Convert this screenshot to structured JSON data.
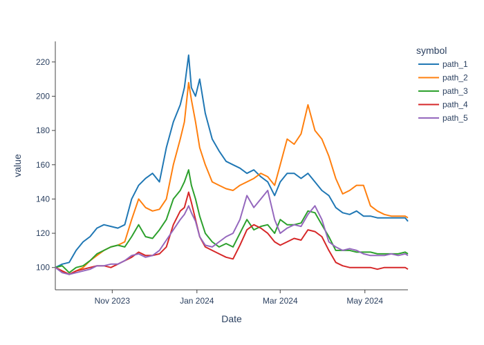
{
  "chart_data": {
    "type": "line",
    "xlabel": "Date",
    "ylabel": "value",
    "legend_title": "symbol",
    "legend_position": "top-right",
    "xlim": [
      "2023-09-21",
      "2024-06-01"
    ],
    "ylim": [
      87,
      232
    ],
    "x_ticks": [
      {
        "date": "2023-11-01",
        "label": "Nov 2023"
      },
      {
        "date": "2024-01-01",
        "label": "Jan 2024"
      },
      {
        "date": "2024-03-01",
        "label": "Mar 2024"
      },
      {
        "date": "2024-05-01",
        "label": "May 2024"
      }
    ],
    "y_ticks": [
      100,
      120,
      140,
      160,
      180,
      200,
      220
    ],
    "grid": false,
    "series": [
      {
        "name": "path_1",
        "color": "#1f77b4",
        "points": [
          [
            "2023-09-21",
            100
          ],
          [
            "2023-09-26",
            102
          ],
          [
            "2023-10-01",
            103
          ],
          [
            "2023-10-06",
            110
          ],
          [
            "2023-10-11",
            115
          ],
          [
            "2023-10-16",
            118
          ],
          [
            "2023-10-21",
            123
          ],
          [
            "2023-10-26",
            125
          ],
          [
            "2023-10-31",
            124
          ],
          [
            "2023-11-05",
            123
          ],
          [
            "2023-11-10",
            125
          ],
          [
            "2023-11-15",
            140
          ],
          [
            "2023-11-20",
            148
          ],
          [
            "2023-11-25",
            152
          ],
          [
            "2023-11-30",
            155
          ],
          [
            "2023-12-05",
            150
          ],
          [
            "2023-12-10",
            170
          ],
          [
            "2023-12-15",
            185
          ],
          [
            "2023-12-20",
            195
          ],
          [
            "2023-12-23",
            205
          ],
          [
            "2023-12-26",
            224
          ],
          [
            "2023-12-28",
            205
          ],
          [
            "2023-12-31",
            200
          ],
          [
            "2024-01-03",
            210
          ],
          [
            "2024-01-07",
            190
          ],
          [
            "2024-01-12",
            175
          ],
          [
            "2024-01-17",
            168
          ],
          [
            "2024-01-22",
            162
          ],
          [
            "2024-01-27",
            160
          ],
          [
            "2024-02-01",
            158
          ],
          [
            "2024-02-06",
            155
          ],
          [
            "2024-02-11",
            157
          ],
          [
            "2024-02-16",
            153
          ],
          [
            "2024-02-21",
            150
          ],
          [
            "2024-02-26",
            142
          ],
          [
            "2024-03-01",
            150
          ],
          [
            "2024-03-06",
            155
          ],
          [
            "2024-03-11",
            155
          ],
          [
            "2024-03-16",
            152
          ],
          [
            "2024-03-21",
            155
          ],
          [
            "2024-03-26",
            150
          ],
          [
            "2024-03-31",
            145
          ],
          [
            "2024-04-05",
            142
          ],
          [
            "2024-04-10",
            135
          ],
          [
            "2024-04-15",
            132
          ],
          [
            "2024-04-20",
            131
          ],
          [
            "2024-04-25",
            133
          ],
          [
            "2024-04-30",
            130
          ],
          [
            "2024-05-05",
            130
          ],
          [
            "2024-05-10",
            129
          ],
          [
            "2024-05-15",
            129
          ],
          [
            "2024-05-20",
            129
          ],
          [
            "2024-05-25",
            129
          ],
          [
            "2024-05-30",
            129
          ],
          [
            "2024-06-01",
            127
          ]
        ]
      },
      {
        "name": "path_2",
        "color": "#ff7f0e",
        "points": [
          [
            "2023-09-21",
            100
          ],
          [
            "2023-09-26",
            98
          ],
          [
            "2023-10-01",
            96
          ],
          [
            "2023-10-06",
            98
          ],
          [
            "2023-10-11",
            100
          ],
          [
            "2023-10-16",
            104
          ],
          [
            "2023-10-21",
            107
          ],
          [
            "2023-10-26",
            110
          ],
          [
            "2023-10-31",
            112
          ],
          [
            "2023-11-05",
            113
          ],
          [
            "2023-11-10",
            115
          ],
          [
            "2023-11-15",
            128
          ],
          [
            "2023-11-20",
            140
          ],
          [
            "2023-11-25",
            135
          ],
          [
            "2023-11-30",
            133
          ],
          [
            "2023-12-05",
            134
          ],
          [
            "2023-12-10",
            140
          ],
          [
            "2023-12-15",
            160
          ],
          [
            "2023-12-20",
            175
          ],
          [
            "2023-12-23",
            185
          ],
          [
            "2023-12-26",
            208
          ],
          [
            "2023-12-28",
            198
          ],
          [
            "2023-12-31",
            185
          ],
          [
            "2024-01-03",
            170
          ],
          [
            "2024-01-07",
            160
          ],
          [
            "2024-01-12",
            150
          ],
          [
            "2024-01-17",
            148
          ],
          [
            "2024-01-22",
            146
          ],
          [
            "2024-01-27",
            145
          ],
          [
            "2024-02-01",
            148
          ],
          [
            "2024-02-06",
            150
          ],
          [
            "2024-02-11",
            152
          ],
          [
            "2024-02-16",
            155
          ],
          [
            "2024-02-21",
            153
          ],
          [
            "2024-02-26",
            148
          ],
          [
            "2024-03-01",
            160
          ],
          [
            "2024-03-06",
            175
          ],
          [
            "2024-03-11",
            172
          ],
          [
            "2024-03-16",
            178
          ],
          [
            "2024-03-21",
            195
          ],
          [
            "2024-03-26",
            180
          ],
          [
            "2024-03-31",
            175
          ],
          [
            "2024-04-05",
            165
          ],
          [
            "2024-04-10",
            152
          ],
          [
            "2024-04-15",
            143
          ],
          [
            "2024-04-20",
            145
          ],
          [
            "2024-04-25",
            148
          ],
          [
            "2024-04-30",
            148
          ],
          [
            "2024-05-05",
            136
          ],
          [
            "2024-05-10",
            133
          ],
          [
            "2024-05-15",
            131
          ],
          [
            "2024-05-20",
            130
          ],
          [
            "2024-05-25",
            130
          ],
          [
            "2024-05-30",
            130
          ],
          [
            "2024-06-01",
            129
          ]
        ]
      },
      {
        "name": "path_3",
        "color": "#2ca02c",
        "points": [
          [
            "2023-09-21",
            100
          ],
          [
            "2023-09-26",
            101
          ],
          [
            "2023-10-01",
            97
          ],
          [
            "2023-10-06",
            100
          ],
          [
            "2023-10-11",
            101
          ],
          [
            "2023-10-16",
            104
          ],
          [
            "2023-10-21",
            108
          ],
          [
            "2023-10-26",
            110
          ],
          [
            "2023-10-31",
            112
          ],
          [
            "2023-11-05",
            113
          ],
          [
            "2023-11-10",
            112
          ],
          [
            "2023-11-15",
            118
          ],
          [
            "2023-11-20",
            125
          ],
          [
            "2023-11-25",
            118
          ],
          [
            "2023-11-30",
            117
          ],
          [
            "2023-12-05",
            122
          ],
          [
            "2023-12-10",
            128
          ],
          [
            "2023-12-15",
            140
          ],
          [
            "2023-12-20",
            145
          ],
          [
            "2023-12-23",
            150
          ],
          [
            "2023-12-26",
            157
          ],
          [
            "2023-12-28",
            148
          ],
          [
            "2023-12-31",
            140
          ],
          [
            "2024-01-03",
            130
          ],
          [
            "2024-01-07",
            120
          ],
          [
            "2024-01-12",
            115
          ],
          [
            "2024-01-17",
            112
          ],
          [
            "2024-01-22",
            114
          ],
          [
            "2024-01-27",
            112
          ],
          [
            "2024-02-01",
            120
          ],
          [
            "2024-02-06",
            128
          ],
          [
            "2024-02-11",
            122
          ],
          [
            "2024-02-16",
            124
          ],
          [
            "2024-02-21",
            125
          ],
          [
            "2024-02-26",
            120
          ],
          [
            "2024-03-01",
            128
          ],
          [
            "2024-03-06",
            125
          ],
          [
            "2024-03-11",
            125
          ],
          [
            "2024-03-16",
            126
          ],
          [
            "2024-03-21",
            133
          ],
          [
            "2024-03-26",
            132
          ],
          [
            "2024-03-31",
            125
          ],
          [
            "2024-04-05",
            118
          ],
          [
            "2024-04-10",
            110
          ],
          [
            "2024-04-15",
            110
          ],
          [
            "2024-04-20",
            110
          ],
          [
            "2024-04-25",
            109
          ],
          [
            "2024-04-30",
            109
          ],
          [
            "2024-05-05",
            109
          ],
          [
            "2024-05-10",
            108
          ],
          [
            "2024-05-15",
            108
          ],
          [
            "2024-05-20",
            108
          ],
          [
            "2024-05-25",
            108
          ],
          [
            "2024-05-30",
            109
          ],
          [
            "2024-06-01",
            108
          ]
        ]
      },
      {
        "name": "path_4",
        "color": "#d62728",
        "points": [
          [
            "2023-09-21",
            100
          ],
          [
            "2023-09-26",
            98
          ],
          [
            "2023-10-01",
            96
          ],
          [
            "2023-10-06",
            98
          ],
          [
            "2023-10-11",
            99
          ],
          [
            "2023-10-16",
            100
          ],
          [
            "2023-10-21",
            101
          ],
          [
            "2023-10-26",
            101
          ],
          [
            "2023-10-31",
            100
          ],
          [
            "2023-11-05",
            102
          ],
          [
            "2023-11-10",
            104
          ],
          [
            "2023-11-15",
            106
          ],
          [
            "2023-11-20",
            109
          ],
          [
            "2023-11-25",
            107
          ],
          [
            "2023-11-30",
            107
          ],
          [
            "2023-12-05",
            108
          ],
          [
            "2023-12-10",
            112
          ],
          [
            "2023-12-15",
            125
          ],
          [
            "2023-12-20",
            133
          ],
          [
            "2023-12-23",
            135
          ],
          [
            "2023-12-26",
            144
          ],
          [
            "2023-12-28",
            138
          ],
          [
            "2023-12-31",
            128
          ],
          [
            "2024-01-03",
            118
          ],
          [
            "2024-01-07",
            112
          ],
          [
            "2024-01-12",
            110
          ],
          [
            "2024-01-17",
            108
          ],
          [
            "2024-01-22",
            106
          ],
          [
            "2024-01-27",
            105
          ],
          [
            "2024-02-01",
            113
          ],
          [
            "2024-02-06",
            122
          ],
          [
            "2024-02-11",
            125
          ],
          [
            "2024-02-16",
            123
          ],
          [
            "2024-02-21",
            120
          ],
          [
            "2024-02-26",
            115
          ],
          [
            "2024-03-01",
            113
          ],
          [
            "2024-03-06",
            115
          ],
          [
            "2024-03-11",
            117
          ],
          [
            "2024-03-16",
            116
          ],
          [
            "2024-03-21",
            122
          ],
          [
            "2024-03-26",
            121
          ],
          [
            "2024-03-31",
            118
          ],
          [
            "2024-04-05",
            110
          ],
          [
            "2024-04-10",
            103
          ],
          [
            "2024-04-15",
            101
          ],
          [
            "2024-04-20",
            100
          ],
          [
            "2024-04-25",
            100
          ],
          [
            "2024-04-30",
            100
          ],
          [
            "2024-05-05",
            100
          ],
          [
            "2024-05-10",
            99
          ],
          [
            "2024-05-15",
            100
          ],
          [
            "2024-05-20",
            100
          ],
          [
            "2024-05-25",
            100
          ],
          [
            "2024-05-30",
            100
          ],
          [
            "2024-06-01",
            99
          ]
        ]
      },
      {
        "name": "path_5",
        "color": "#9467bd",
        "points": [
          [
            "2023-09-21",
            100
          ],
          [
            "2023-09-26",
            97
          ],
          [
            "2023-10-01",
            96
          ],
          [
            "2023-10-06",
            97
          ],
          [
            "2023-10-11",
            98
          ],
          [
            "2023-10-16",
            99
          ],
          [
            "2023-10-21",
            101
          ],
          [
            "2023-10-26",
            101
          ],
          [
            "2023-10-31",
            102
          ],
          [
            "2023-11-05",
            102
          ],
          [
            "2023-11-10",
            104
          ],
          [
            "2023-11-15",
            107
          ],
          [
            "2023-11-20",
            108
          ],
          [
            "2023-11-25",
            106
          ],
          [
            "2023-11-30",
            107
          ],
          [
            "2023-12-05",
            110
          ],
          [
            "2023-12-10",
            116
          ],
          [
            "2023-12-15",
            122
          ],
          [
            "2023-12-20",
            128
          ],
          [
            "2023-12-23",
            131
          ],
          [
            "2023-12-26",
            136
          ],
          [
            "2023-12-28",
            132
          ],
          [
            "2023-12-31",
            127
          ],
          [
            "2024-01-03",
            118
          ],
          [
            "2024-01-07",
            113
          ],
          [
            "2024-01-12",
            112
          ],
          [
            "2024-01-17",
            115
          ],
          [
            "2024-01-22",
            118
          ],
          [
            "2024-01-27",
            120
          ],
          [
            "2024-02-01",
            128
          ],
          [
            "2024-02-06",
            142
          ],
          [
            "2024-02-11",
            135
          ],
          [
            "2024-02-16",
            140
          ],
          [
            "2024-02-21",
            145
          ],
          [
            "2024-02-26",
            128
          ],
          [
            "2024-03-01",
            120
          ],
          [
            "2024-03-06",
            123
          ],
          [
            "2024-03-11",
            125
          ],
          [
            "2024-03-16",
            124
          ],
          [
            "2024-03-21",
            131
          ],
          [
            "2024-03-26",
            136
          ],
          [
            "2024-03-31",
            128
          ],
          [
            "2024-04-05",
            115
          ],
          [
            "2024-04-10",
            112
          ],
          [
            "2024-04-15",
            110
          ],
          [
            "2024-04-20",
            111
          ],
          [
            "2024-04-25",
            110
          ],
          [
            "2024-04-30",
            108
          ],
          [
            "2024-05-05",
            107
          ],
          [
            "2024-05-10",
            107
          ],
          [
            "2024-05-15",
            107
          ],
          [
            "2024-05-20",
            108
          ],
          [
            "2024-05-25",
            107
          ],
          [
            "2024-05-30",
            108
          ],
          [
            "2024-06-01",
            107
          ]
        ]
      }
    ]
  }
}
